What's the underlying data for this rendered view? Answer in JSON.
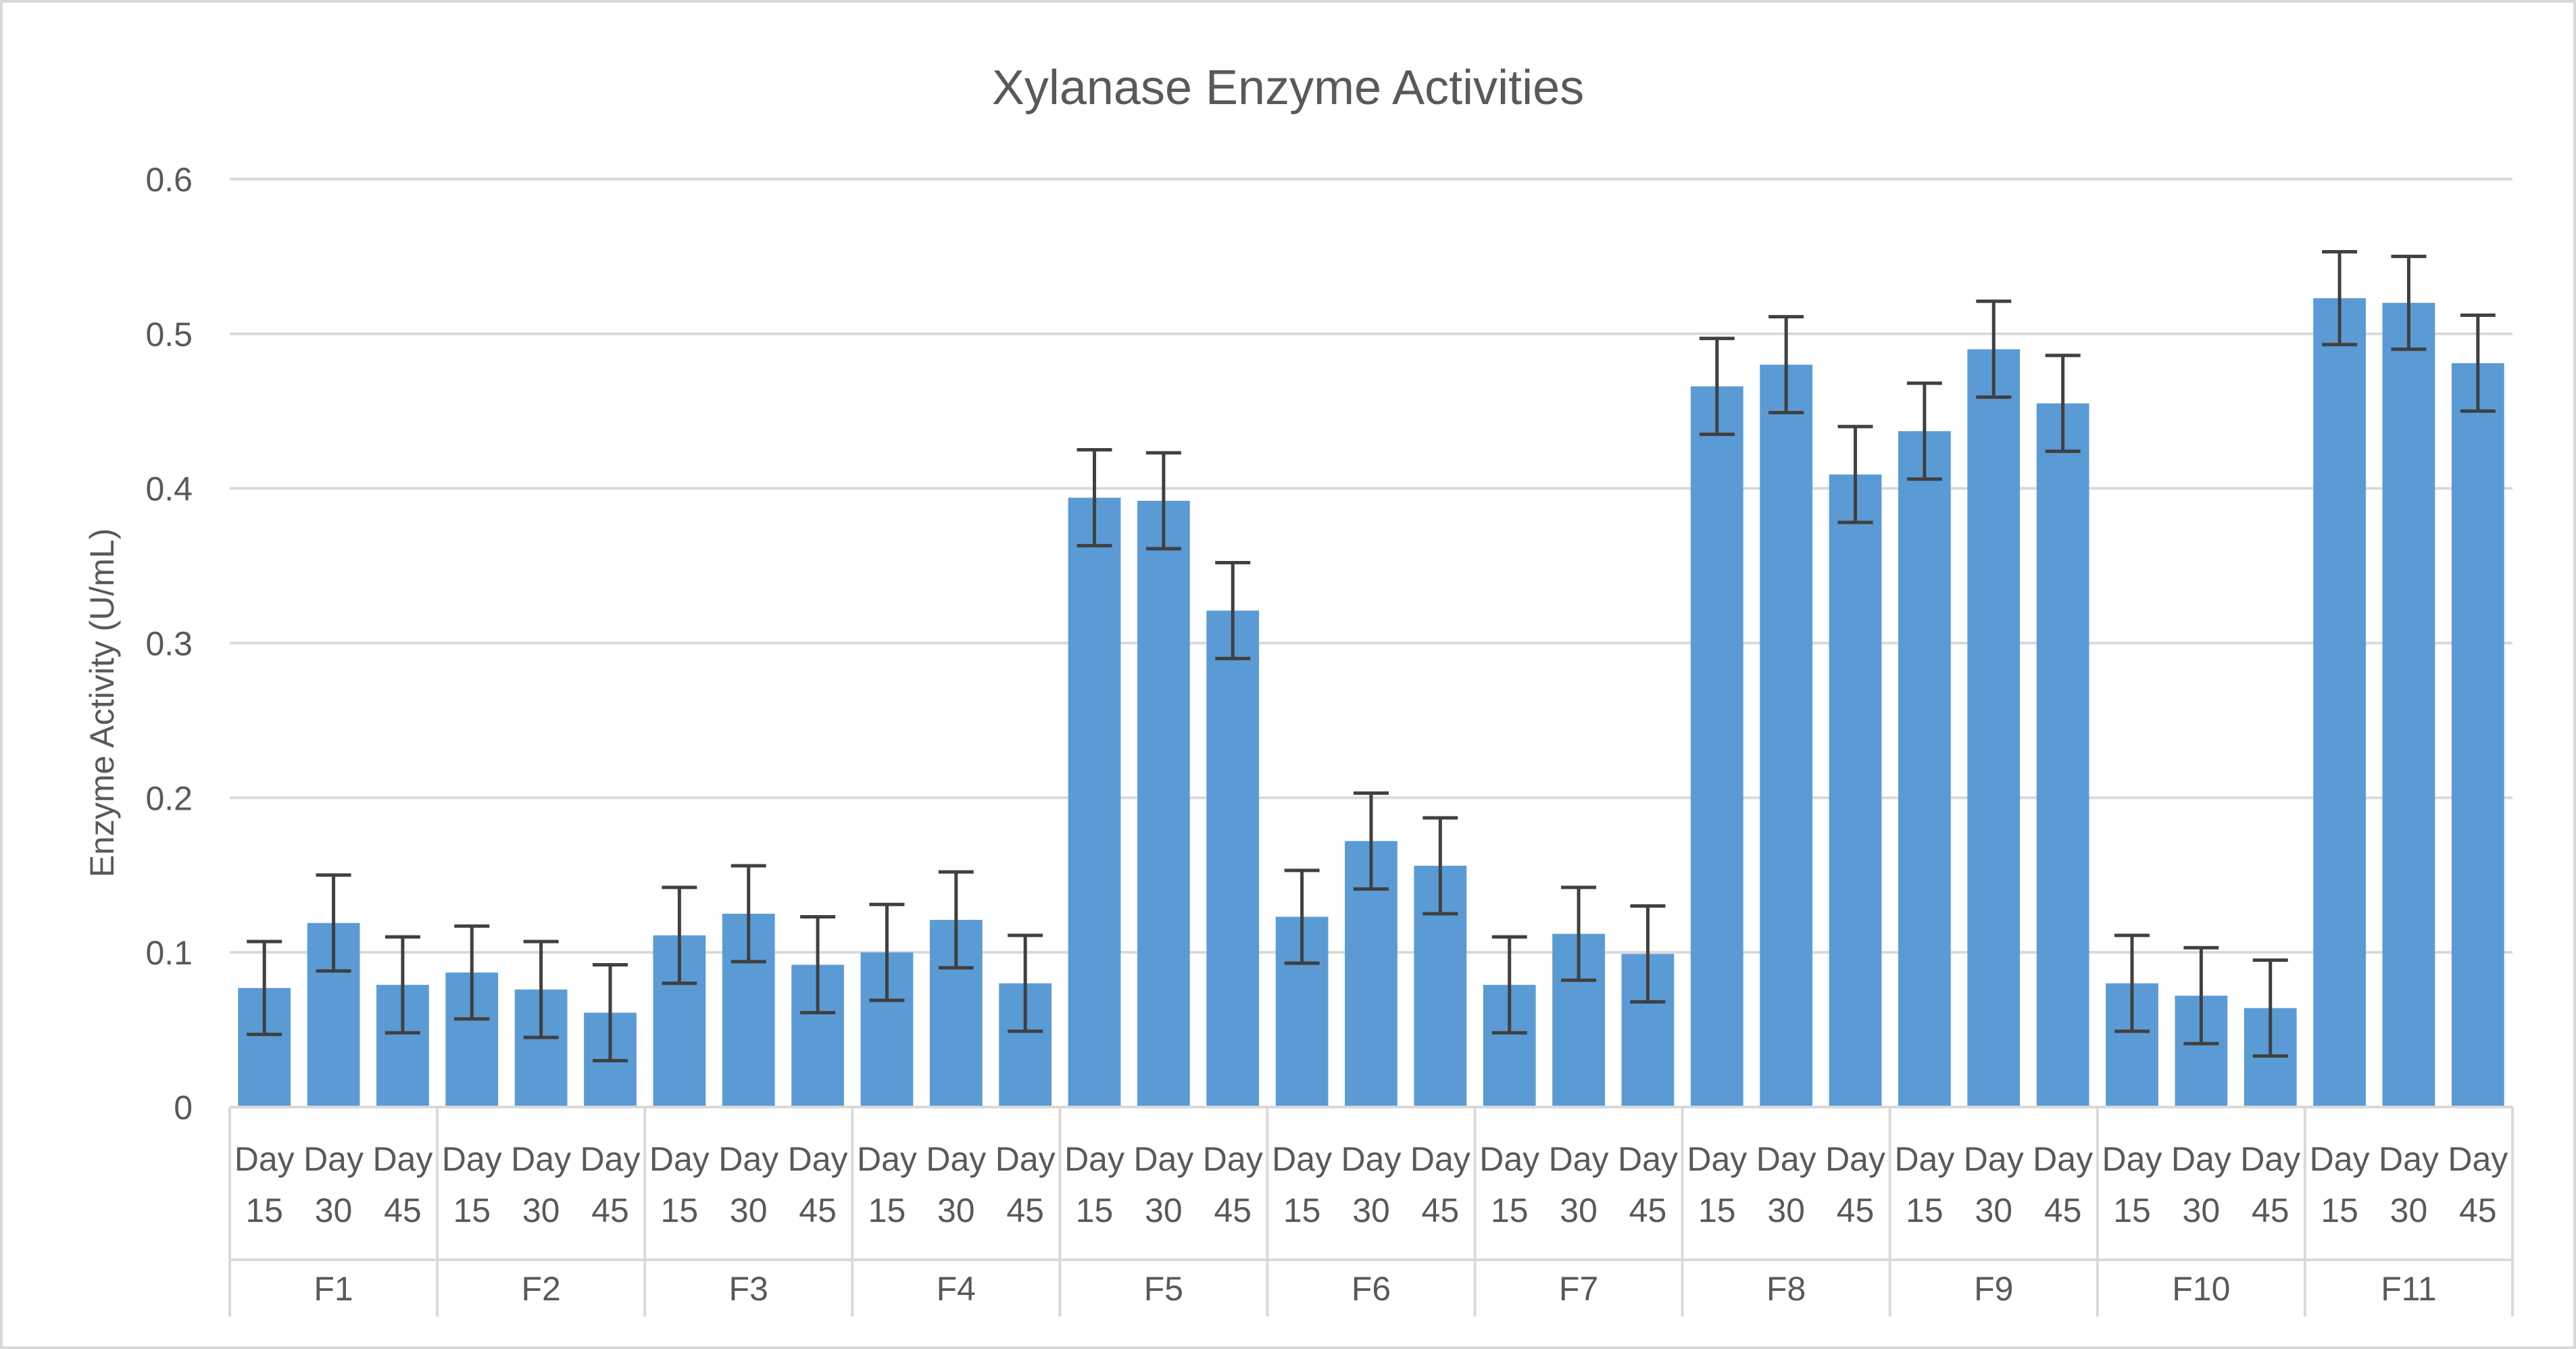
{
  "chart_data": {
    "type": "bar",
    "title": "Xylanase Enzyme Activities",
    "ylabel": "Enzyme Activity (U/mL)",
    "xlabel": "",
    "ylim": [
      0,
      0.6
    ],
    "yticks": [
      "0",
      "0.1",
      "0.2",
      "0.3",
      "0.4",
      "0.5",
      "0.6"
    ],
    "grid": true,
    "legend": "none",
    "bar_color": "#5B9BD5",
    "groups": [
      {
        "label": "F1",
        "days": [
          {
            "line1": "Day",
            "line2": "15"
          },
          {
            "line1": "Day",
            "line2": "30"
          },
          {
            "line1": "Day",
            "line2": "45"
          }
        ],
        "values": [
          0.077,
          0.119,
          0.079
        ],
        "errors": [
          0.03,
          0.031,
          0.031
        ]
      },
      {
        "label": "F2",
        "days": [
          {
            "line1": "Day",
            "line2": "15"
          },
          {
            "line1": "Day",
            "line2": "30"
          },
          {
            "line1": "Day",
            "line2": "45"
          }
        ],
        "values": [
          0.087,
          0.076,
          0.061
        ],
        "errors": [
          0.03,
          0.031,
          0.031
        ]
      },
      {
        "label": "F3",
        "days": [
          {
            "line1": "Day",
            "line2": "15"
          },
          {
            "line1": "Day",
            "line2": "30"
          },
          {
            "line1": "Day",
            "line2": "45"
          }
        ],
        "values": [
          0.111,
          0.125,
          0.092
        ],
        "errors": [
          0.031,
          0.031,
          0.031
        ]
      },
      {
        "label": "F4",
        "days": [
          {
            "line1": "Day",
            "line2": "15"
          },
          {
            "line1": "Day",
            "line2": "30"
          },
          {
            "line1": "Day",
            "line2": "45"
          }
        ],
        "values": [
          0.1,
          0.121,
          0.08
        ],
        "errors": [
          0.031,
          0.031,
          0.031
        ]
      },
      {
        "label": "F5",
        "days": [
          {
            "line1": "Day",
            "line2": "15"
          },
          {
            "line1": "Day",
            "line2": "30"
          },
          {
            "line1": "Day",
            "line2": "45"
          }
        ],
        "values": [
          0.394,
          0.392,
          0.321
        ],
        "errors": [
          0.031,
          0.031,
          0.031
        ]
      },
      {
        "label": "F6",
        "days": [
          {
            "line1": "Day",
            "line2": "15"
          },
          {
            "line1": "Day",
            "line2": "30"
          },
          {
            "line1": "Day",
            "line2": "45"
          }
        ],
        "values": [
          0.123,
          0.172,
          0.156
        ],
        "errors": [
          0.03,
          0.031,
          0.031
        ]
      },
      {
        "label": "F7",
        "days": [
          {
            "line1": "Day",
            "line2": "15"
          },
          {
            "line1": "Day",
            "line2": "30"
          },
          {
            "line1": "Day",
            "line2": "45"
          }
        ],
        "values": [
          0.079,
          0.112,
          0.099
        ],
        "errors": [
          0.031,
          0.03,
          0.031
        ]
      },
      {
        "label": "F8",
        "days": [
          {
            "line1": "Day",
            "line2": "15"
          },
          {
            "line1": "Day",
            "line2": "30"
          },
          {
            "line1": "Day",
            "line2": "45"
          }
        ],
        "values": [
          0.466,
          0.48,
          0.409
        ],
        "errors": [
          0.031,
          0.031,
          0.031
        ]
      },
      {
        "label": "F9",
        "days": [
          {
            "line1": "Day",
            "line2": "15"
          },
          {
            "line1": "Day",
            "line2": "30"
          },
          {
            "line1": "Day",
            "line2": "45"
          }
        ],
        "values": [
          0.437,
          0.49,
          0.455
        ],
        "errors": [
          0.031,
          0.031,
          0.031
        ]
      },
      {
        "label": "F10",
        "days": [
          {
            "line1": "Day",
            "line2": "15"
          },
          {
            "line1": "Day",
            "line2": "30"
          },
          {
            "line1": "Day",
            "line2": "45"
          }
        ],
        "values": [
          0.08,
          0.072,
          0.064
        ],
        "errors": [
          0.031,
          0.031,
          0.031
        ]
      },
      {
        "label": "F11",
        "days": [
          {
            "line1": "Day",
            "line2": "15"
          },
          {
            "line1": "Day",
            "line2": "30"
          },
          {
            "line1": "Day",
            "line2": "45"
          }
        ],
        "values": [
          0.523,
          0.52,
          0.481
        ],
        "errors": [
          0.03,
          0.03,
          0.031
        ]
      }
    ]
  }
}
